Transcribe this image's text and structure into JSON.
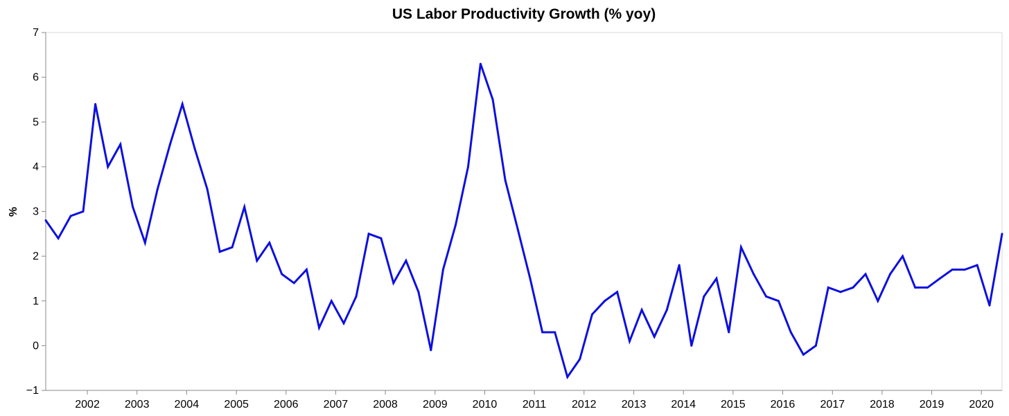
{
  "chart_data": {
    "type": "line",
    "title": "US Labor Productivity Growth (% yoy)",
    "xlabel": "",
    "ylabel": "%",
    "ylim": [
      -1,
      7
    ],
    "xlim": [
      "2001-03-01",
      "2020-06-01"
    ],
    "grid": false,
    "y_ticks": [
      "−1",
      "0",
      "1",
      "2",
      "3",
      "4",
      "5",
      "6",
      "7"
    ],
    "x_ticks": [
      "2002",
      "2003",
      "2004",
      "2005",
      "2006",
      "2007",
      "2008",
      "2009",
      "2010",
      "2011",
      "2012",
      "2013",
      "2014",
      "2015",
      "2016",
      "2017",
      "2018",
      "2019",
      "2020"
    ],
    "line_color": "#0c10e0",
    "series": [
      {
        "x": [
          "2001-03-01",
          "2001-06-01",
          "2001-09-01",
          "2001-12-01",
          "2002-03-01",
          "2002-06-01",
          "2002-09-01",
          "2002-12-01",
          "2003-03-01",
          "2003-06-01",
          "2003-09-01",
          "2003-12-01",
          "2004-03-01",
          "2004-06-01",
          "2004-09-01",
          "2004-12-01",
          "2005-03-01",
          "2005-06-01",
          "2005-09-01",
          "2005-12-01",
          "2006-03-01",
          "2006-06-01",
          "2006-09-01",
          "2006-12-01",
          "2007-03-01",
          "2007-06-01",
          "2007-09-01",
          "2007-12-01",
          "2008-03-01",
          "2008-06-01",
          "2008-09-01",
          "2008-12-01",
          "2009-03-01",
          "2009-06-01",
          "2009-09-01",
          "2009-12-01",
          "2010-03-01",
          "2010-06-01",
          "2010-09-01",
          "2010-12-01",
          "2011-03-01",
          "2011-06-01",
          "2011-09-01",
          "2011-12-01",
          "2012-03-01",
          "2012-06-01",
          "2012-09-01",
          "2012-12-01",
          "2013-03-01",
          "2013-06-01",
          "2013-09-01",
          "2013-12-01",
          "2014-03-01",
          "2014-06-01",
          "2014-09-01",
          "2014-12-01",
          "2015-03-01",
          "2015-06-01",
          "2015-09-01",
          "2015-12-01",
          "2016-03-01",
          "2016-06-01",
          "2016-09-01",
          "2016-12-01",
          "2017-03-01",
          "2017-06-01",
          "2017-09-01",
          "2017-12-01",
          "2018-03-01",
          "2018-06-01",
          "2018-09-01",
          "2018-12-01",
          "2019-03-01",
          "2019-06-01",
          "2019-09-01",
          "2019-12-01",
          "2020-03-01",
          "2020-06-01"
        ],
        "values": [
          2.8,
          2.4,
          2.9,
          3.0,
          5.4,
          4.0,
          4.5,
          3.1,
          2.3,
          3.5,
          4.5,
          5.4,
          4.4,
          3.5,
          2.1,
          2.2,
          3.1,
          1.9,
          2.3,
          1.6,
          1.4,
          1.7,
          0.4,
          1.0,
          0.5,
          1.1,
          2.5,
          2.4,
          1.4,
          1.9,
          1.2,
          -0.1,
          1.7,
          2.7,
          4.0,
          6.3,
          5.5,
          3.7,
          2.6,
          1.5,
          0.3,
          0.3,
          -0.7,
          -0.3,
          0.7,
          1.0,
          1.2,
          0.1,
          0.8,
          0.2,
          0.8,
          1.8,
          0.0,
          1.1,
          1.5,
          0.3,
          2.2,
          1.6,
          1.1,
          1.0,
          0.3,
          -0.2,
          0.0,
          1.3,
          1.2,
          1.3,
          1.6,
          1.0,
          1.6,
          2.0,
          1.3,
          1.3,
          1.5,
          1.7,
          1.7,
          1.8,
          0.9,
          2.5
        ]
      }
    ]
  }
}
